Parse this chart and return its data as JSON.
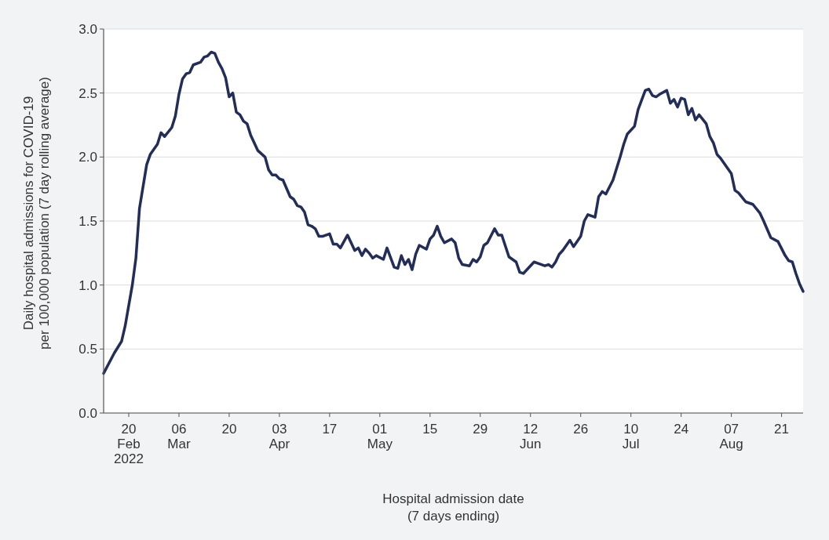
{
  "chart_data": {
    "type": "line",
    "xlabel": "Hospital admission date\n(7 days ending)",
    "ylabel": "Daily hospital admissions for COVID-19\nper 100,000 population (7 day rolling average)",
    "xlim": [
      "2022-02-13",
      "2022-08-27"
    ],
    "xticks": [
      {
        "value": "2022-02-20",
        "label": "20\nFeb\n2022"
      },
      {
        "value": "2022-03-06",
        "label": "06\nMar"
      },
      {
        "value": "2022-03-20",
        "label": "20"
      },
      {
        "value": "2022-04-03",
        "label": "03\nApr"
      },
      {
        "value": "2022-04-17",
        "label": "17"
      },
      {
        "value": "2022-05-01",
        "label": "01\nMay"
      },
      {
        "value": "2022-05-15",
        "label": "15"
      },
      {
        "value": "2022-05-29",
        "label": "29"
      },
      {
        "value": "2022-06-12",
        "label": "12\nJun"
      },
      {
        "value": "2022-06-26",
        "label": "26"
      },
      {
        "value": "2022-07-10",
        "label": "10\nJul"
      },
      {
        "value": "2022-07-24",
        "label": "24"
      },
      {
        "value": "2022-08-07",
        "label": "07\nAug"
      },
      {
        "value": "2022-08-21",
        "label": "21"
      }
    ],
    "ylim": [
      0,
      3
    ],
    "yticks": [
      {
        "value": 0,
        "label": "0.0"
      },
      0.5,
      {
        "value": 1,
        "label": "1.0"
      },
      1.5,
      {
        "value": 2,
        "label": "2.0"
      },
      2.5,
      {
        "value": 3,
        "label": "3.0"
      }
    ],
    "grid": "y",
    "marker": "none",
    "line_style": "solid",
    "series": [
      {
        "color": "#222d5a",
        "x": [
          "2022-02-13",
          "2022-02-16",
          "2022-02-18",
          "2022-02-19",
          "2022-02-21",
          "2022-02-22",
          "2022-02-23",
          "2022-02-25",
          "2022-02-26",
          "2022-02-28",
          "2022-03-01",
          "2022-03-02",
          "2022-03-04",
          "2022-03-05",
          "2022-03-06",
          "2022-03-07",
          "2022-03-08",
          "2022-03-09",
          "2022-03-10",
          "2022-03-12",
          "2022-03-13",
          "2022-03-14",
          "2022-03-15",
          "2022-03-16",
          "2022-03-17",
          "2022-03-18",
          "2022-03-19",
          "2022-03-20",
          "2022-03-21",
          "2022-03-22",
          "2022-03-23",
          "2022-03-24",
          "2022-03-25",
          "2022-03-26",
          "2022-03-28",
          "2022-03-30",
          "2022-03-31",
          "2022-04-01",
          "2022-04-02",
          "2022-04-03",
          "2022-04-04",
          "2022-04-06",
          "2022-04-07",
          "2022-04-08",
          "2022-04-09",
          "2022-04-10",
          "2022-04-11",
          "2022-04-12",
          "2022-04-13",
          "2022-04-14",
          "2022-04-15",
          "2022-04-17",
          "2022-04-18",
          "2022-04-19",
          "2022-04-20",
          "2022-04-22",
          "2022-04-24",
          "2022-04-25",
          "2022-04-26",
          "2022-04-27",
          "2022-04-28",
          "2022-04-29",
          "2022-04-30",
          "2022-05-02",
          "2022-05-03",
          "2022-05-05",
          "2022-05-06",
          "2022-05-07",
          "2022-05-08",
          "2022-05-09",
          "2022-05-10",
          "2022-05-11",
          "2022-05-12",
          "2022-05-14",
          "2022-05-15",
          "2022-05-16",
          "2022-05-17",
          "2022-05-18",
          "2022-05-19",
          "2022-05-21",
          "2022-05-22",
          "2022-05-23",
          "2022-05-24",
          "2022-05-26",
          "2022-05-27",
          "2022-05-28",
          "2022-05-29",
          "2022-05-30",
          "2022-05-31",
          "2022-06-02",
          "2022-06-03",
          "2022-06-04",
          "2022-06-06",
          "2022-06-08",
          "2022-06-09",
          "2022-06-10",
          "2022-06-13",
          "2022-06-14",
          "2022-06-16",
          "2022-06-17",
          "2022-06-18",
          "2022-06-19",
          "2022-06-20",
          "2022-06-21",
          "2022-06-23",
          "2022-06-24",
          "2022-06-26",
          "2022-06-27",
          "2022-06-28",
          "2022-06-30",
          "2022-07-01",
          "2022-07-02",
          "2022-07-03",
          "2022-07-05",
          "2022-07-07",
          "2022-07-08",
          "2022-07-09",
          "2022-07-11",
          "2022-07-12",
          "2022-07-14",
          "2022-07-15",
          "2022-07-16",
          "2022-07-17",
          "2022-07-18",
          "2022-07-20",
          "2022-07-21",
          "2022-07-22",
          "2022-07-23",
          "2022-07-24",
          "2022-07-25",
          "2022-07-26",
          "2022-07-27",
          "2022-07-28",
          "2022-07-29",
          "2022-07-31",
          "2022-08-01",
          "2022-08-02",
          "2022-08-03",
          "2022-08-04",
          "2022-08-07",
          "2022-08-08",
          "2022-08-09",
          "2022-08-11",
          "2022-08-13",
          "2022-08-15",
          "2022-08-16",
          "2022-08-18",
          "2022-08-20",
          "2022-08-22",
          "2022-08-23",
          "2022-08-24",
          "2022-08-25",
          "2022-08-26",
          "2022-08-27"
        ],
        "values": [
          0.31,
          0.47,
          0.56,
          0.68,
          1.0,
          1.21,
          1.6,
          1.94,
          2.02,
          2.1,
          2.19,
          2.16,
          2.23,
          2.32,
          2.49,
          2.61,
          2.65,
          2.66,
          2.72,
          2.74,
          2.78,
          2.79,
          2.82,
          2.81,
          2.74,
          2.69,
          2.62,
          2.47,
          2.5,
          2.35,
          2.33,
          2.28,
          2.26,
          2.17,
          2.05,
          2.0,
          1.9,
          1.86,
          1.86,
          1.83,
          1.82,
          1.69,
          1.67,
          1.62,
          1.61,
          1.57,
          1.47,
          1.46,
          1.44,
          1.38,
          1.38,
          1.4,
          1.32,
          1.32,
          1.29,
          1.39,
          1.27,
          1.29,
          1.23,
          1.28,
          1.25,
          1.21,
          1.23,
          1.2,
          1.29,
          1.14,
          1.13,
          1.23,
          1.16,
          1.2,
          1.12,
          1.24,
          1.31,
          1.28,
          1.36,
          1.39,
          1.46,
          1.38,
          1.33,
          1.36,
          1.33,
          1.21,
          1.16,
          1.15,
          1.2,
          1.18,
          1.22,
          1.31,
          1.33,
          1.44,
          1.39,
          1.39,
          1.22,
          1.18,
          1.1,
          1.09,
          1.18,
          1.17,
          1.15,
          1.16,
          1.14,
          1.18,
          1.24,
          1.27,
          1.35,
          1.3,
          1.38,
          1.5,
          1.55,
          1.53,
          1.69,
          1.73,
          1.71,
          1.82,
          2.0,
          2.1,
          2.18,
          2.24,
          2.37,
          2.52,
          2.53,
          2.48,
          2.47,
          2.49,
          2.52,
          2.42,
          2.45,
          2.39,
          2.46,
          2.45,
          2.33,
          2.38,
          2.29,
          2.33,
          2.26,
          2.16,
          2.11,
          2.02,
          1.99,
          1.87,
          1.74,
          1.72,
          1.65,
          1.63,
          1.56,
          1.5,
          1.37,
          1.34,
          1.23,
          1.19,
          1.18,
          1.09,
          1.01,
          0.95
        ]
      }
    ]
  }
}
